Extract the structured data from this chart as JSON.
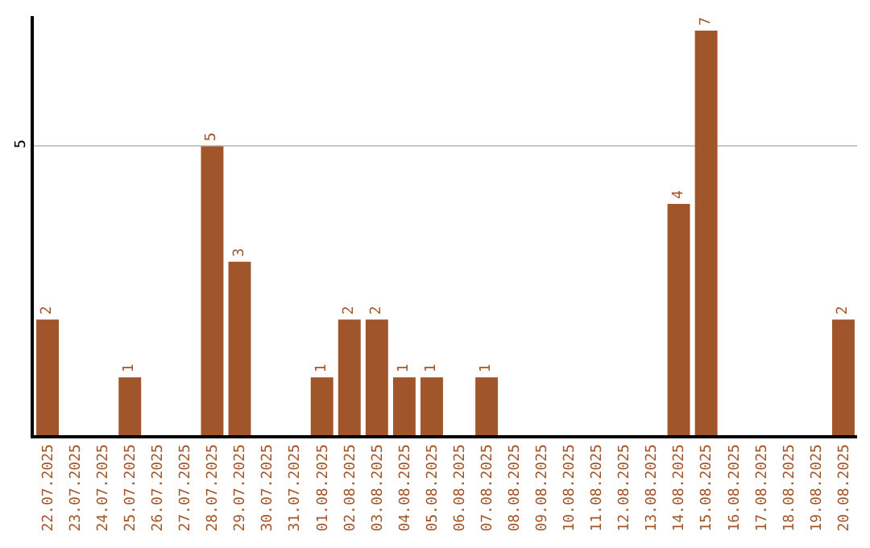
{
  "chart_data": {
    "type": "bar",
    "categories": [
      "22.07.2025",
      "23.07.2025",
      "24.07.2025",
      "25.07.2025",
      "26.07.2025",
      "27.07.2025",
      "28.07.2025",
      "29.07.2025",
      "30.07.2025",
      "31.07.2025",
      "01.08.2025",
      "02.08.2025",
      "03.08.2025",
      "04.08.2025",
      "05.08.2025",
      "06.08.2025",
      "07.08.2025",
      "08.08.2025",
      "09.08.2025",
      "10.08.2025",
      "11.08.2025",
      "12.08.2025",
      "13.08.2025",
      "14.08.2025",
      "15.08.2025",
      "16.08.2025",
      "17.08.2025",
      "18.08.2025",
      "19.08.2025",
      "20.08.2025"
    ],
    "values": [
      2,
      0,
      0,
      1,
      0,
      0,
      5,
      3,
      0,
      0,
      1,
      2,
      2,
      1,
      1,
      0,
      1,
      0,
      0,
      0,
      0,
      0,
      0,
      4,
      7,
      0,
      0,
      0,
      0,
      2
    ],
    "value_labels": [
      "2",
      null,
      null,
      "1",
      null,
      null,
      "5",
      "3",
      null,
      null,
      "1",
      "2",
      "2",
      "1",
      "1",
      null,
      "1",
      null,
      null,
      null,
      null,
      null,
      null,
      "4",
      "7",
      null,
      null,
      null,
      null,
      "2"
    ],
    "color": "#a0562a",
    "ylim": [
      0,
      7.25
    ],
    "yticks": [
      5
    ],
    "grid": "y",
    "legend": false
  }
}
